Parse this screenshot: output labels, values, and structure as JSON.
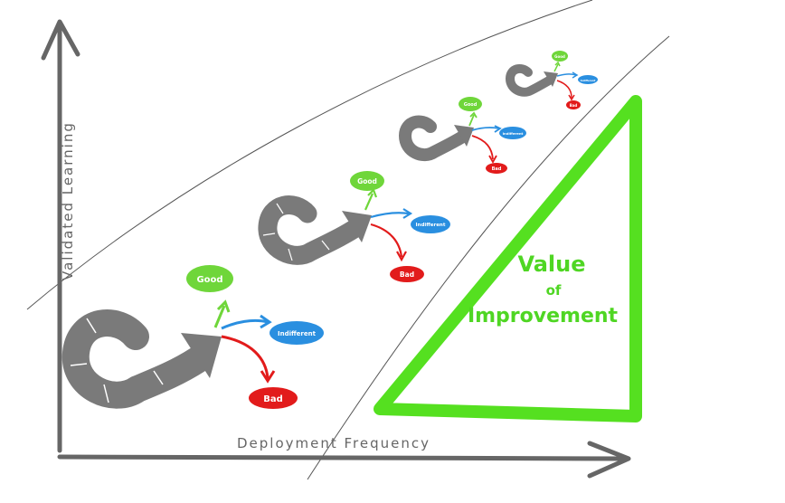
{
  "axes": {
    "y_label": "Validated Learning",
    "x_label": "Deployment Frequency"
  },
  "outcomes": {
    "good": "Good",
    "indifferent": "Indifferent",
    "bad": "Bad"
  },
  "value_of_improvement": {
    "line1": "Value",
    "line2": "of",
    "line3": "Improvement"
  },
  "colors": {
    "axis": "#666666",
    "loop": "#7a7a7a",
    "good": "#6fd63a",
    "indifferent": "#2a8fe0",
    "bad": "#e21b1b",
    "triangle": "#55e020",
    "guide_line": "#555555"
  }
}
